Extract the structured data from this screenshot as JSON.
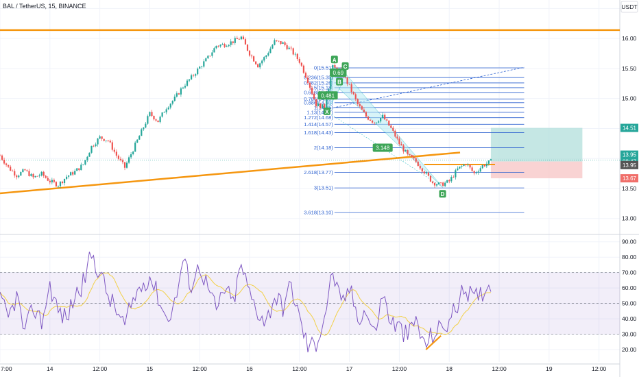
{
  "header": {
    "symbol": "BAL / TetherUS, 15, BINANCE",
    "currency": "USDT"
  },
  "colors": {
    "bull": "#26a69a",
    "bear": "#ef5350",
    "orange": "#f5960f",
    "fib": "#2a5fcf",
    "rsi": "#7e57c2",
    "rsi_ma": "#f2d046",
    "pattern": "#3ac0c9",
    "pattern_fill": "#b2ebf2",
    "target_fill": "#b2dfdb",
    "stop_fill": "#f8c8c8",
    "current": "#26a69a",
    "label_green": "#3da557",
    "stop_label": "#f06f6a"
  },
  "price_axis": {
    "ticks": [
      "16.50",
      "16.00",
      "15.50",
      "15.00",
      "14.50",
      "14.00",
      "13.50",
      "13.00"
    ],
    "tick_values": [
      16.5,
      16.0,
      15.5,
      15.0,
      14.5,
      14.0,
      13.5,
      13.0
    ],
    "ylim": [
      12.78,
      16.55
    ],
    "labels": [
      {
        "text": "14.51",
        "value": 14.51,
        "color": "#26a69a"
      },
      {
        "text": "13.95",
        "value": 13.95,
        "color": "#26a69a",
        "sub": "08:47"
      },
      {
        "text": "13.95",
        "value": 13.89,
        "color": "#555555"
      },
      {
        "text": "13.67",
        "value": 13.67,
        "color": "#f06f6a"
      }
    ]
  },
  "rsi_axis": {
    "ticks": [
      "90.00",
      "80.00",
      "70.00",
      "60.00",
      "50.00",
      "40.00",
      "30.00",
      "20.00"
    ],
    "tick_values": [
      90,
      80,
      70,
      60,
      50,
      40,
      30,
      20
    ],
    "ylim": [
      12,
      93
    ],
    "band": [
      30,
      70
    ]
  },
  "time_axis": {
    "ticks": [
      "7:00",
      "14",
      "12:00",
      "15",
      "12:00",
      "16",
      "12:00",
      "17",
      "12:00",
      "18",
      "12:00",
      "19",
      "12:00"
    ],
    "positions": [
      0,
      6,
      12,
      18,
      24,
      30,
      36,
      42,
      48,
      54,
      60,
      66,
      72
    ],
    "xlim": [
      0,
      74.5
    ]
  },
  "chart_data": {
    "type": "line",
    "price_keypoints": [
      [
        0,
        14.05
      ],
      [
        1,
        13.85
      ],
      [
        2,
        13.72
      ],
      [
        3,
        13.8
      ],
      [
        4,
        13.68
      ],
      [
        5,
        13.74
      ],
      [
        6,
        13.62
      ],
      [
        7,
        13.56
      ],
      [
        8,
        13.7
      ],
      [
        9,
        13.78
      ],
      [
        10,
        13.9
      ],
      [
        11,
        14.2
      ],
      [
        12,
        14.35
      ],
      [
        13,
        14.3
      ],
      [
        14,
        14.05
      ],
      [
        15,
        13.85
      ],
      [
        16,
        14.15
      ],
      [
        17,
        14.45
      ],
      [
        18,
        14.75
      ],
      [
        19,
        14.62
      ],
      [
        20,
        14.85
      ],
      [
        21,
        15.0
      ],
      [
        22,
        15.2
      ],
      [
        23,
        15.35
      ],
      [
        24,
        15.52
      ],
      [
        25,
        15.68
      ],
      [
        26,
        15.88
      ],
      [
        27,
        15.9
      ],
      [
        28,
        15.95
      ],
      [
        29,
        16.02
      ],
      [
        30,
        15.75
      ],
      [
        31,
        15.55
      ],
      [
        32,
        15.72
      ],
      [
        33,
        15.95
      ],
      [
        34,
        15.92
      ],
      [
        35,
        15.8
      ],
      [
        36,
        15.62
      ],
      [
        37,
        15.3
      ],
      [
        38,
        14.9
      ],
      [
        39,
        14.85
      ],
      [
        40,
        15.52
      ],
      [
        41,
        15.45
      ],
      [
        42,
        15.2
      ],
      [
        43,
        14.9
      ],
      [
        44,
        14.7
      ],
      [
        45,
        14.6
      ],
      [
        46,
        14.7
      ],
      [
        47,
        14.5
      ],
      [
        48,
        14.25
      ],
      [
        49,
        14.05
      ],
      [
        50,
        13.95
      ],
      [
        51,
        13.78
      ],
      [
        52,
        13.6
      ],
      [
        53,
        13.56
      ],
      [
        54,
        13.62
      ],
      [
        55,
        13.82
      ],
      [
        56,
        13.92
      ],
      [
        57,
        13.75
      ],
      [
        58,
        13.88
      ],
      [
        59,
        13.95
      ]
    ],
    "fib_levels": [
      {
        "label": "0(15.51)",
        "value": 15.51
      },
      {
        "label": "0.236(15.35)",
        "value": 15.35
      },
      {
        "label": "0.382(15.26)",
        "value": 15.26
      },
      {
        "label": "0.5(15.18)",
        "value": 15.18
      },
      {
        "label": "0.618(15.10)",
        "value": 15.1
      },
      {
        "label": "0.786(14.99)",
        "value": 14.99
      },
      {
        "label": "0.886(14.93)",
        "value": 14.93
      },
      {
        "label": "1(14.85)",
        "value": 14.85
      },
      {
        "label": "1.13(14.77)",
        "value": 14.77
      },
      {
        "label": "1.272(14.68)",
        "value": 14.68
      },
      {
        "label": "1.414(14.57)",
        "value": 14.57
      },
      {
        "label": "1.618(14.43)",
        "value": 14.43
      },
      {
        "label": "2(14.18)",
        "value": 14.18
      },
      {
        "label": "2.618(13.77)",
        "value": 13.77
      },
      {
        "label": "3(13.51)",
        "value": 13.51
      },
      {
        "label": "3.618(13.10)",
        "value": 13.1
      }
    ],
    "fib_x_range": [
      40.2,
      63
    ],
    "resistance_line": {
      "value": 16.14
    },
    "trendline": {
      "x": [
        0,
        55.3
      ],
      "y": [
        13.42,
        14.1
      ]
    },
    "neckline": {
      "x": [
        51,
        59.5
      ],
      "y": [
        13.9,
        13.9
      ]
    },
    "fib_extension_dashed": {
      "x": [
        39.2,
        63
      ],
      "y": [
        14.82,
        15.52
      ]
    },
    "harmonic_points": [
      {
        "name": "X",
        "x": 39.3,
        "y": 14.78
      },
      {
        "name": "A",
        "x": 40.2,
        "y": 15.53
      },
      {
        "name": "B",
        "x": 40.8,
        "y": 15.16
      },
      {
        "name": "C",
        "x": 41.5,
        "y": 15.42
      },
      {
        "name": "D",
        "x": 53.2,
        "y": 13.52
      }
    ],
    "pattern_ratios": [
      {
        "text": "0.481",
        "x": 39.4,
        "y": 15.05
      },
      {
        "text": "0.69",
        "x": 40.65,
        "y": 15.43
      },
      {
        "text": "3.148",
        "x": 46.0,
        "y": 14.18
      }
    ],
    "position": {
      "x": [
        59,
        70
      ],
      "entry": 13.95,
      "target": 14.51,
      "stop": 13.67
    },
    "rsi_keypoints": [
      [
        0,
        52
      ],
      [
        1,
        40
      ],
      [
        2,
        55
      ],
      [
        3,
        30
      ],
      [
        4,
        48
      ],
      [
        5,
        38
      ],
      [
        6,
        62
      ],
      [
        7,
        45
      ],
      [
        8,
        40
      ],
      [
        9,
        55
      ],
      [
        10,
        63
      ],
      [
        11,
        82
      ],
      [
        12,
        70
      ],
      [
        13,
        55
      ],
      [
        14,
        45
      ],
      [
        15,
        35
      ],
      [
        16,
        52
      ],
      [
        17,
        62
      ],
      [
        18,
        68
      ],
      [
        19,
        55
      ],
      [
        20,
        40
      ],
      [
        21,
        50
      ],
      [
        22,
        78
      ],
      [
        23,
        62
      ],
      [
        24,
        75
      ],
      [
        25,
        60
      ],
      [
        26,
        45
      ],
      [
        27,
        60
      ],
      [
        28,
        50
      ],
      [
        29,
        75
      ],
      [
        30,
        56
      ],
      [
        31,
        45
      ],
      [
        32,
        38
      ],
      [
        33,
        55
      ],
      [
        34,
        48
      ],
      [
        35,
        62
      ],
      [
        36,
        40
      ],
      [
        37,
        22
      ],
      [
        38,
        24
      ],
      [
        39,
        42
      ],
      [
        40,
        71
      ],
      [
        41,
        48
      ],
      [
        42,
        60
      ],
      [
        43,
        42
      ],
      [
        44,
        45
      ],
      [
        45,
        30
      ],
      [
        46,
        56
      ],
      [
        47,
        38
      ],
      [
        48,
        34
      ],
      [
        49,
        28
      ],
      [
        50,
        40
      ],
      [
        51,
        22
      ],
      [
        52,
        30
      ],
      [
        53,
        34
      ],
      [
        54,
        38
      ],
      [
        55,
        50
      ],
      [
        56,
        60
      ],
      [
        57,
        52
      ],
      [
        58,
        58
      ],
      [
        59,
        63
      ]
    ],
    "rsi_divergence": {
      "x": [
        51.2,
        53
      ],
      "y": [
        20,
        29
      ]
    }
  }
}
